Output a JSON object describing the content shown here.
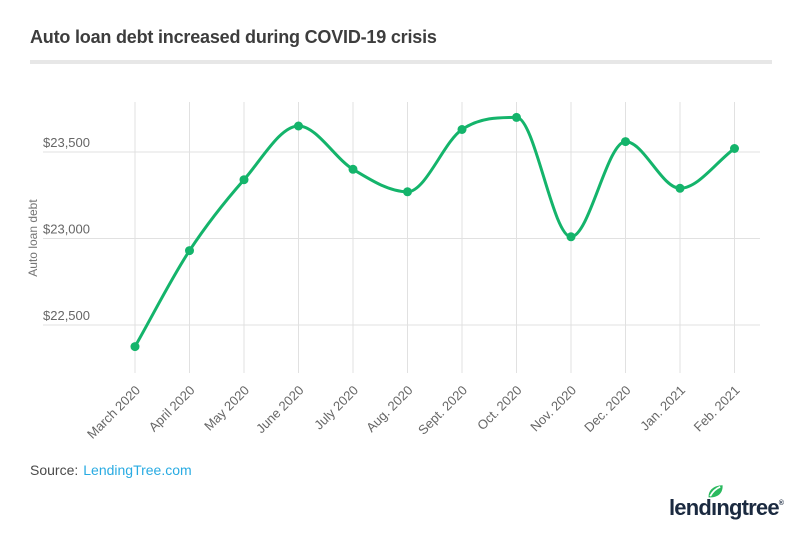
{
  "header": {
    "title": "Auto loan debt increased during COVID-19 crisis"
  },
  "chart_data": {
    "type": "line",
    "title": "Auto loan debt increased during COVID-19 crisis",
    "ylabel": "Auto loan debt",
    "xlabel": "",
    "categories": [
      "March 2020",
      "April 2020",
      "May 2020",
      "June 2020",
      "July 2020",
      "Aug. 2020",
      "Sept. 2020",
      "Oct. 2020",
      "Nov. 2020",
      "Dec. 2020",
      "Jan. 2021",
      "Feb. 2021"
    ],
    "values": [
      22375,
      22930,
      23340,
      23650,
      23400,
      23270,
      23630,
      23700,
      23010,
      23560,
      23290,
      23520
    ],
    "y_ticks": [
      23500,
      23000,
      22500
    ],
    "y_tick_labels": [
      "$23,500",
      "$23,000",
      "$22,500"
    ],
    "ylim": [
      22250,
      23790
    ],
    "grid": true,
    "legend": "none",
    "line_color": "#14b46b",
    "dot_color": "#14b46b",
    "grid_color": "#e1e1e1",
    "tick_label_color": "#666666",
    "axis_title_color": "#757575"
  },
  "footer": {
    "source_label": "Source:",
    "source_link": "LendingTree.com",
    "link_color": "#29abe2"
  },
  "logo": {
    "word_start": "lend",
    "word_i": "ı",
    "word_end": "ngtree",
    "trademark": "®",
    "navy": "#1b2a40",
    "leaf_green": "#2ab95e"
  }
}
